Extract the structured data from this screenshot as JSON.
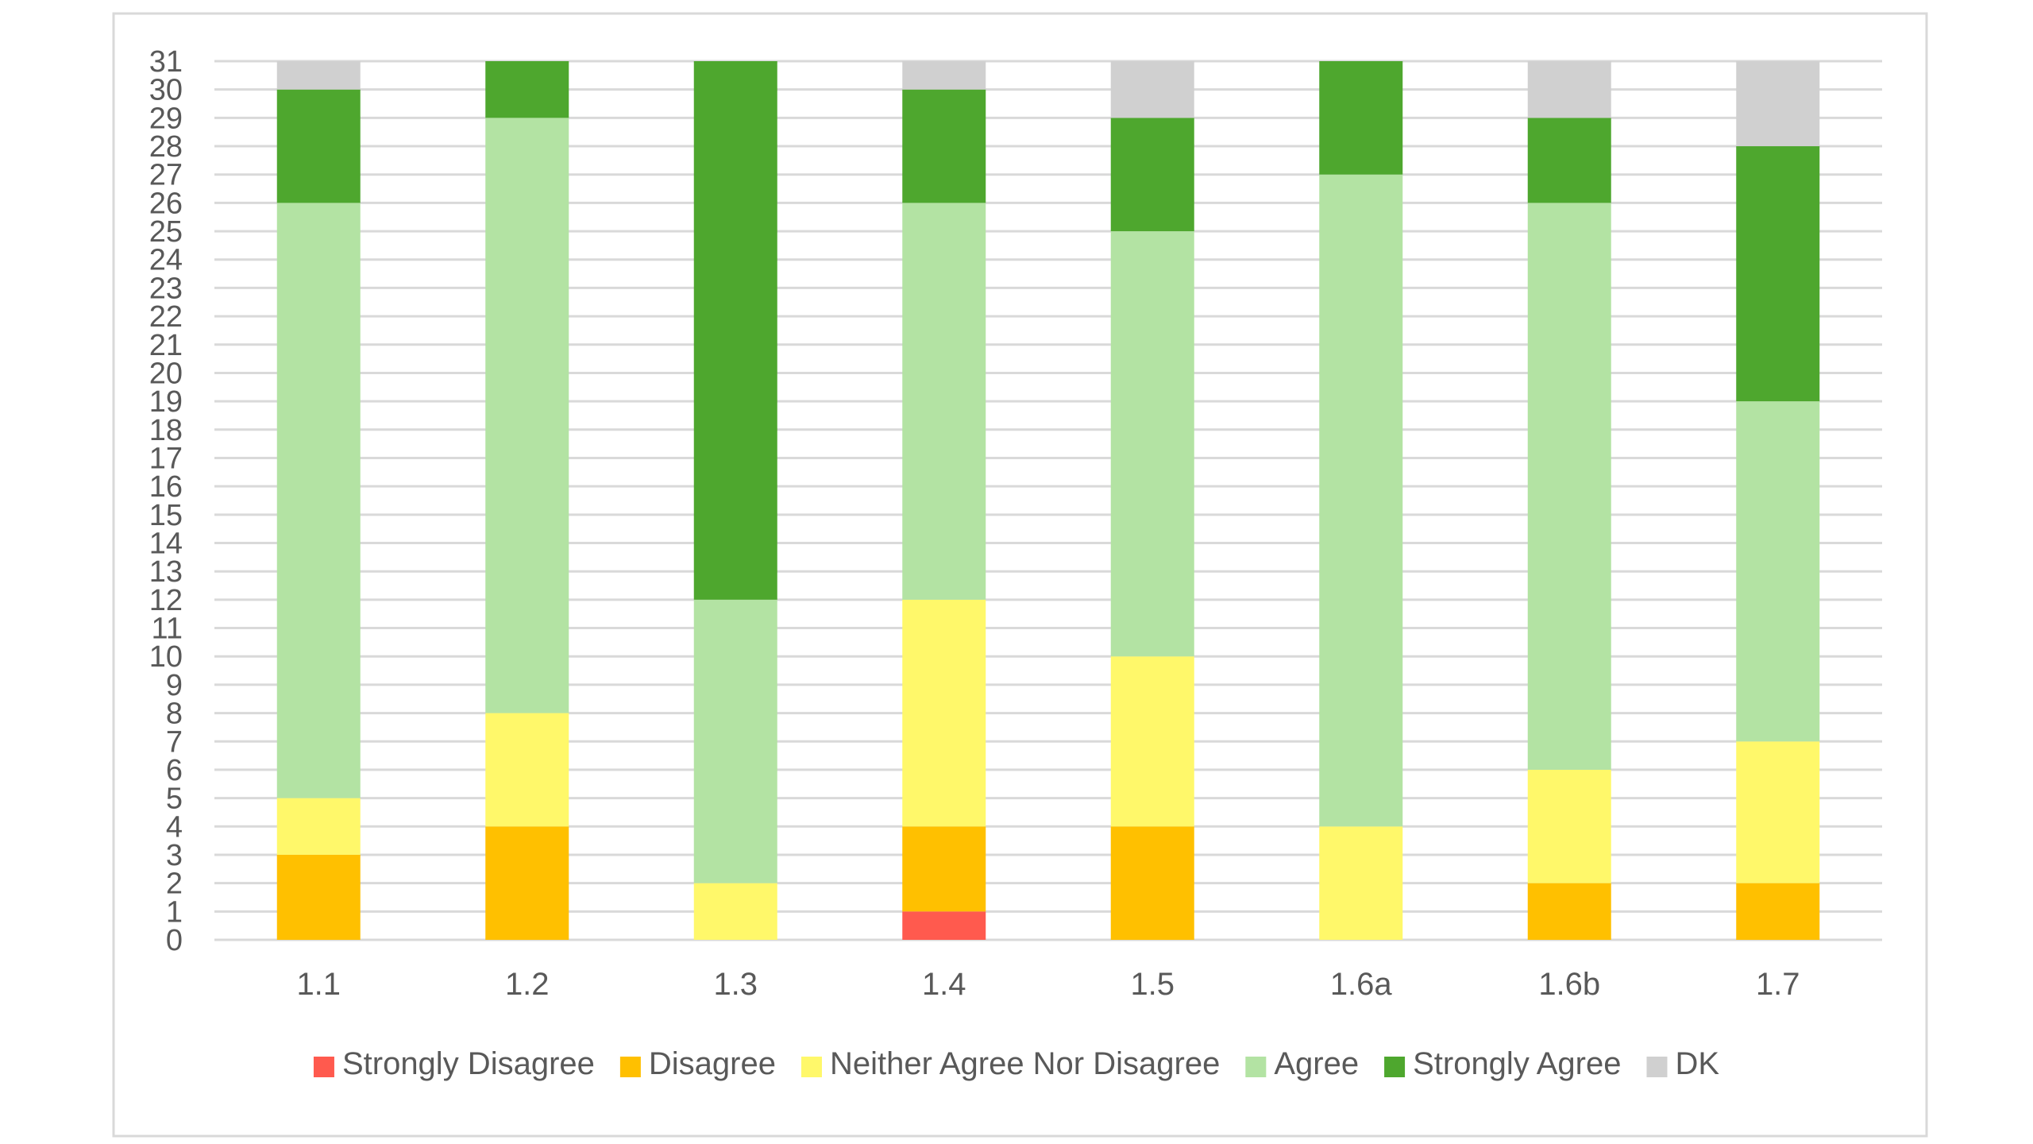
{
  "chart_data": {
    "type": "bar",
    "stacked": true,
    "categories": [
      "1.1",
      "1.2",
      "1.3",
      "1.4",
      "1.5",
      "1.6a",
      "1.6b",
      "1.7"
    ],
    "series": [
      {
        "name": "Strongly Disagree",
        "color": "#FF5A4E",
        "values": [
          0,
          0,
          0,
          1,
          0,
          0,
          0,
          0
        ]
      },
      {
        "name": "Disagree",
        "color": "#FFC000",
        "values": [
          3,
          4,
          0,
          3,
          4,
          0,
          2,
          2
        ]
      },
      {
        "name": "Neither Agree Nor Disagree",
        "color": "#FFF86A",
        "values": [
          2,
          4,
          2,
          8,
          6,
          4,
          4,
          5
        ]
      },
      {
        "name": "Agree",
        "color": "#B3E3A3",
        "values": [
          21,
          21,
          10,
          14,
          15,
          23,
          20,
          12
        ]
      },
      {
        "name": "Strongly Agree",
        "color": "#4EA72E",
        "values": [
          4,
          2,
          19,
          4,
          4,
          4,
          3,
          9
        ]
      },
      {
        "name": "DK",
        "color": "#D0D0D0",
        "values": [
          1,
          0,
          0,
          1,
          2,
          0,
          2,
          3
        ]
      }
    ],
    "ylim": [
      0,
      31
    ],
    "ytick_step": 1,
    "grid": true,
    "legend_position": "bottom",
    "title": "",
    "xlabel": "",
    "ylabel": ""
  }
}
